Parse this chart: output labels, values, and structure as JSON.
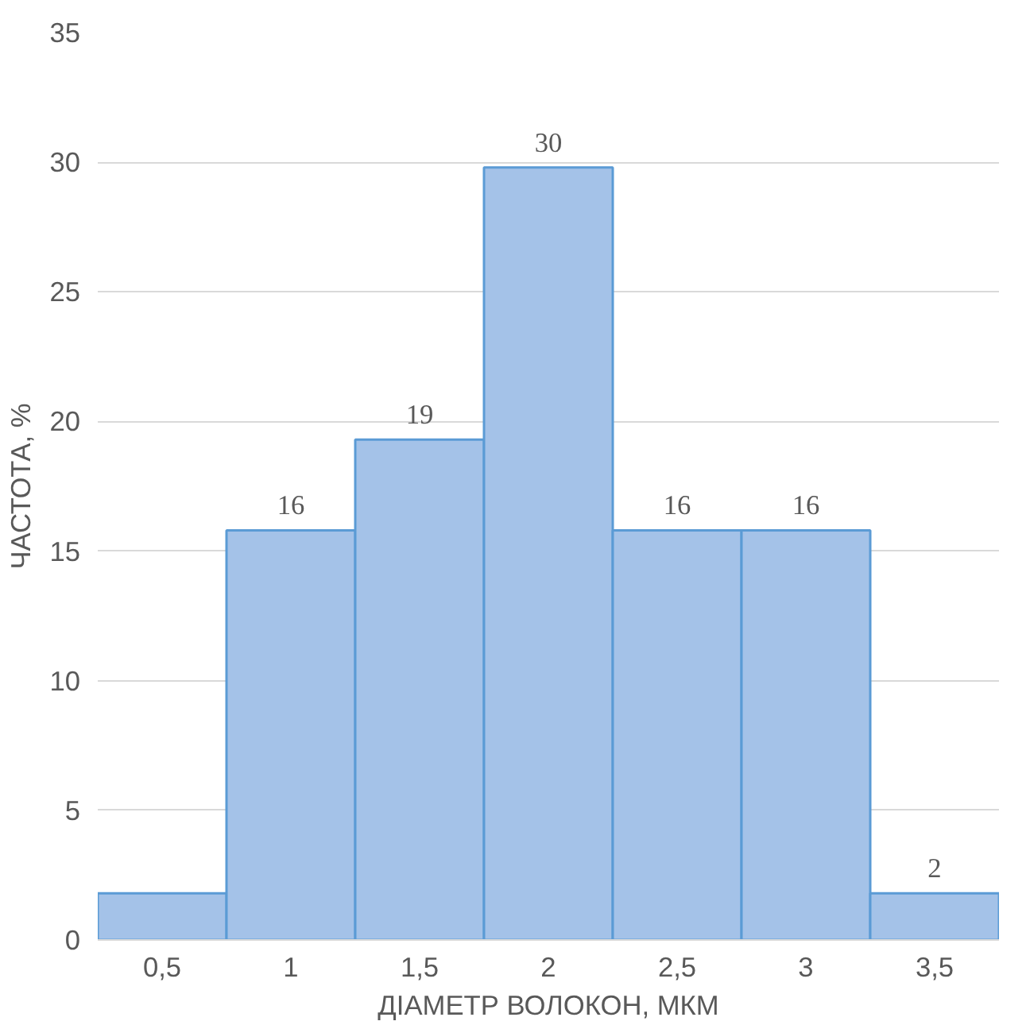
{
  "chart_data": {
    "type": "bar",
    "xlabel": "ДІАМЕТР ВОЛОКОН, МКМ",
    "ylabel": "ЧАСТОТА, %",
    "categories": [
      "0,5",
      "1",
      "1,5",
      "2",
      "2,5",
      "3",
      "3,5"
    ],
    "values": [
      1.8,
      15.8,
      19.3,
      29.8,
      15.8,
      15.8,
      1.8
    ],
    "value_labels": [
      null,
      "16",
      "19",
      "30",
      "16",
      "16",
      "2"
    ],
    "color": "#a4c2e8",
    "ylim": [
      0,
      35
    ],
    "yticks": [
      0,
      5,
      10,
      15,
      20,
      25,
      30,
      35
    ],
    "grid": "y"
  }
}
